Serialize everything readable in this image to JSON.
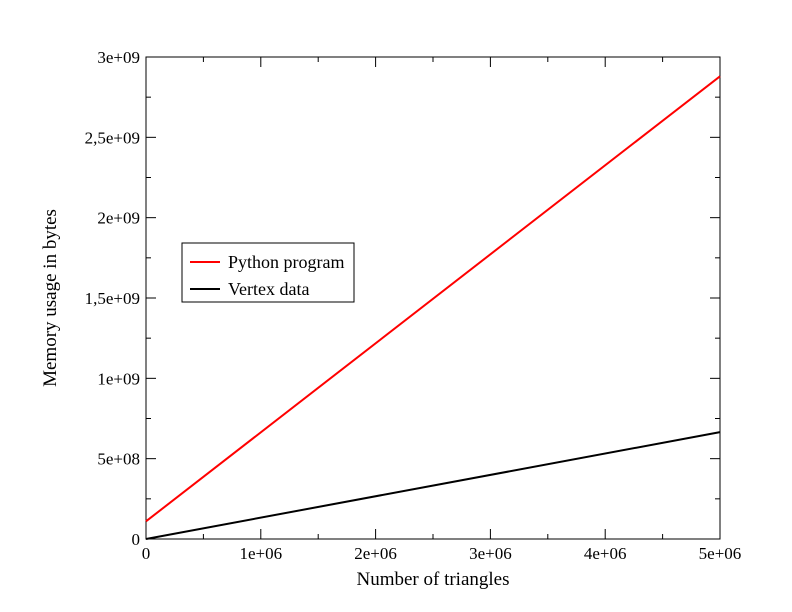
{
  "chart_data": {
    "type": "line",
    "xlabel": "Number of triangles",
    "ylabel": "Memory usage in bytes",
    "xlim": [
      0,
      5000000
    ],
    "ylim": [
      0,
      3000000000
    ],
    "x_ticks": [
      {
        "value": 0,
        "label": "0"
      },
      {
        "value": 1000000,
        "label": "1e+06"
      },
      {
        "value": 2000000,
        "label": "2e+06"
      },
      {
        "value": 3000000,
        "label": "3e+06"
      },
      {
        "value": 4000000,
        "label": "4e+06"
      },
      {
        "value": 5000000,
        "label": "5e+06"
      }
    ],
    "y_ticks": [
      {
        "value": 0,
        "label": "0"
      },
      {
        "value": 500000000,
        "label": "5e+08"
      },
      {
        "value": 1000000000,
        "label": "1e+09"
      },
      {
        "value": 1500000000,
        "label": "1,5e+09"
      },
      {
        "value": 2000000000,
        "label": "2e+09"
      },
      {
        "value": 2500000000,
        "label": "2,5e+09"
      },
      {
        "value": 3000000000,
        "label": "3e+09"
      }
    ],
    "grid": false,
    "legend_position": "upper-left",
    "series": [
      {
        "name": "Python program",
        "color": "#ff0000",
        "x": [
          0,
          5000000
        ],
        "y": [
          110000000,
          2880000000
        ]
      },
      {
        "name": "Vertex data",
        "color": "#000000",
        "x": [
          0,
          5000000
        ],
        "y": [
          0,
          665000000
        ]
      }
    ]
  }
}
